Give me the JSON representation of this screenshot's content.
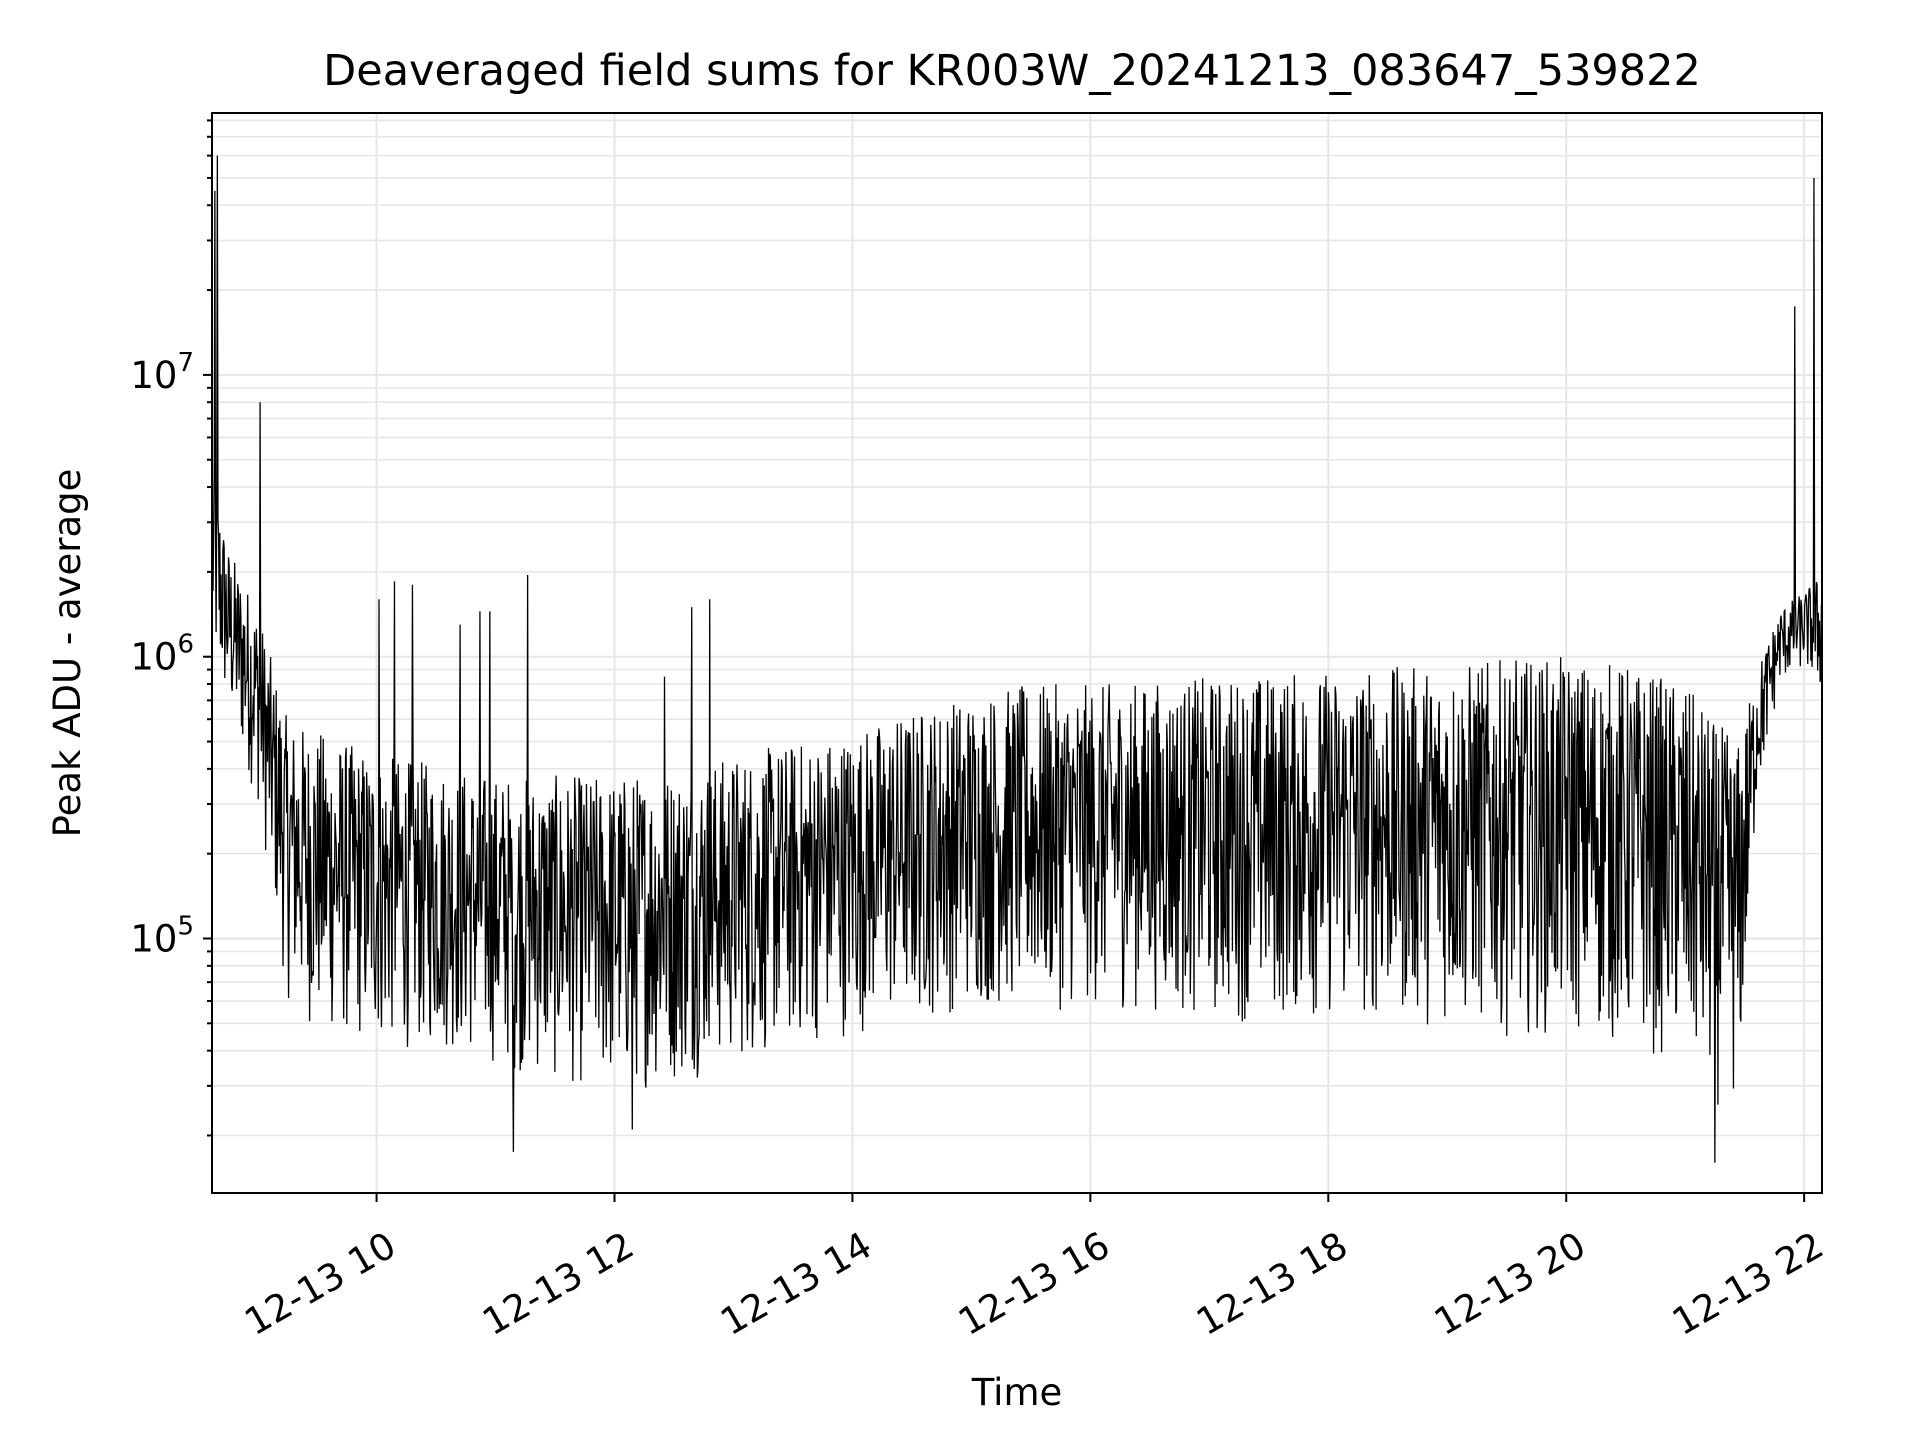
{
  "chart_data": {
    "type": "line",
    "title": "Deaveraged field sums for KR003W_20241213_083647_539822",
    "xlabel": "Time",
    "ylabel": "Peak ADU - average",
    "yscale": "log",
    "ylim": [
      12500,
      85000000
    ],
    "xlim": [
      "12-13 08:37",
      "12-13 22:09"
    ],
    "grid": true,
    "legend": "none",
    "line_color": "#000000",
    "grid_color": "#e6e6e6",
    "x_tick_labels": [
      "12-13 10",
      "12-13 12",
      "12-13 14",
      "12-13 16",
      "12-13 18",
      "12-13 20",
      "12-13 22"
    ],
    "x_tick_hours": [
      10,
      12,
      14,
      16,
      18,
      20,
      22
    ],
    "y_tick_labels": [
      {
        "base": "10",
        "exp": "5",
        "value": 100000
      },
      {
        "base": "10",
        "exp": "6",
        "value": 1000000
      },
      {
        "base": "10",
        "exp": "7",
        "value": 10000000
      }
    ],
    "series_envelope": {
      "description_units": "x in hours of 12-13, y in ADU",
      "x_hours": [
        8.62,
        8.75,
        9.0,
        9.25,
        9.5,
        10.0,
        10.5,
        11.0,
        11.5,
        12.0,
        12.5,
        13.0,
        13.5,
        14.0,
        14.5,
        15.0,
        15.5,
        16.0,
        16.5,
        17.0,
        17.5,
        18.0,
        18.5,
        19.0,
        19.5,
        20.0,
        20.5,
        21.0,
        21.25,
        21.45,
        21.6,
        21.8,
        22.0,
        22.15
      ],
      "upper": [
        5000000,
        2500000,
        1500000,
        600000,
        550000,
        450000,
        420000,
        380000,
        380000,
        380000,
        400000,
        450000,
        500000,
        550000,
        650000,
        750000,
        800000,
        800000,
        820000,
        850000,
        880000,
        900000,
        920000,
        950000,
        980000,
        1000000,
        950000,
        800000,
        600000,
        500000,
        900000,
        1500000,
        1700000,
        2000000
      ],
      "lower": [
        900000,
        600000,
        300000,
        60000,
        45000,
        40000,
        40000,
        35000,
        30000,
        28000,
        30000,
        35000,
        40000,
        45000,
        50000,
        55000,
        55000,
        55000,
        55000,
        50000,
        50000,
        50000,
        50000,
        48000,
        45000,
        45000,
        40000,
        35000,
        25000,
        25000,
        300000,
        800000,
        900000,
        700000
      ]
    },
    "spikes": [
      {
        "x_hour": 8.66,
        "y": 60000000
      },
      {
        "x_hour": 8.64,
        "y": 45000000
      },
      {
        "x_hour": 9.02,
        "y": 8000000
      },
      {
        "x_hour": 10.02,
        "y": 1600000
      },
      {
        "x_hour": 10.15,
        "y": 1850000
      },
      {
        "x_hour": 10.3,
        "y": 1800000
      },
      {
        "x_hour": 10.7,
        "y": 1300000
      },
      {
        "x_hour": 10.87,
        "y": 1450000
      },
      {
        "x_hour": 10.95,
        "y": 1450000
      },
      {
        "x_hour": 11.27,
        "y": 1950000
      },
      {
        "x_hour": 12.42,
        "y": 850000
      },
      {
        "x_hour": 12.65,
        "y": 1500000
      },
      {
        "x_hour": 12.8,
        "y": 1600000
      },
      {
        "x_hour": 21.92,
        "y": 17500000
      },
      {
        "x_hour": 22.08,
        "y": 50000000
      },
      {
        "x_hour": 11.15,
        "y": 17500
      },
      {
        "x_hour": 21.25,
        "y": 16000
      },
      {
        "x_hour": 12.15,
        "y": 21000
      }
    ]
  }
}
